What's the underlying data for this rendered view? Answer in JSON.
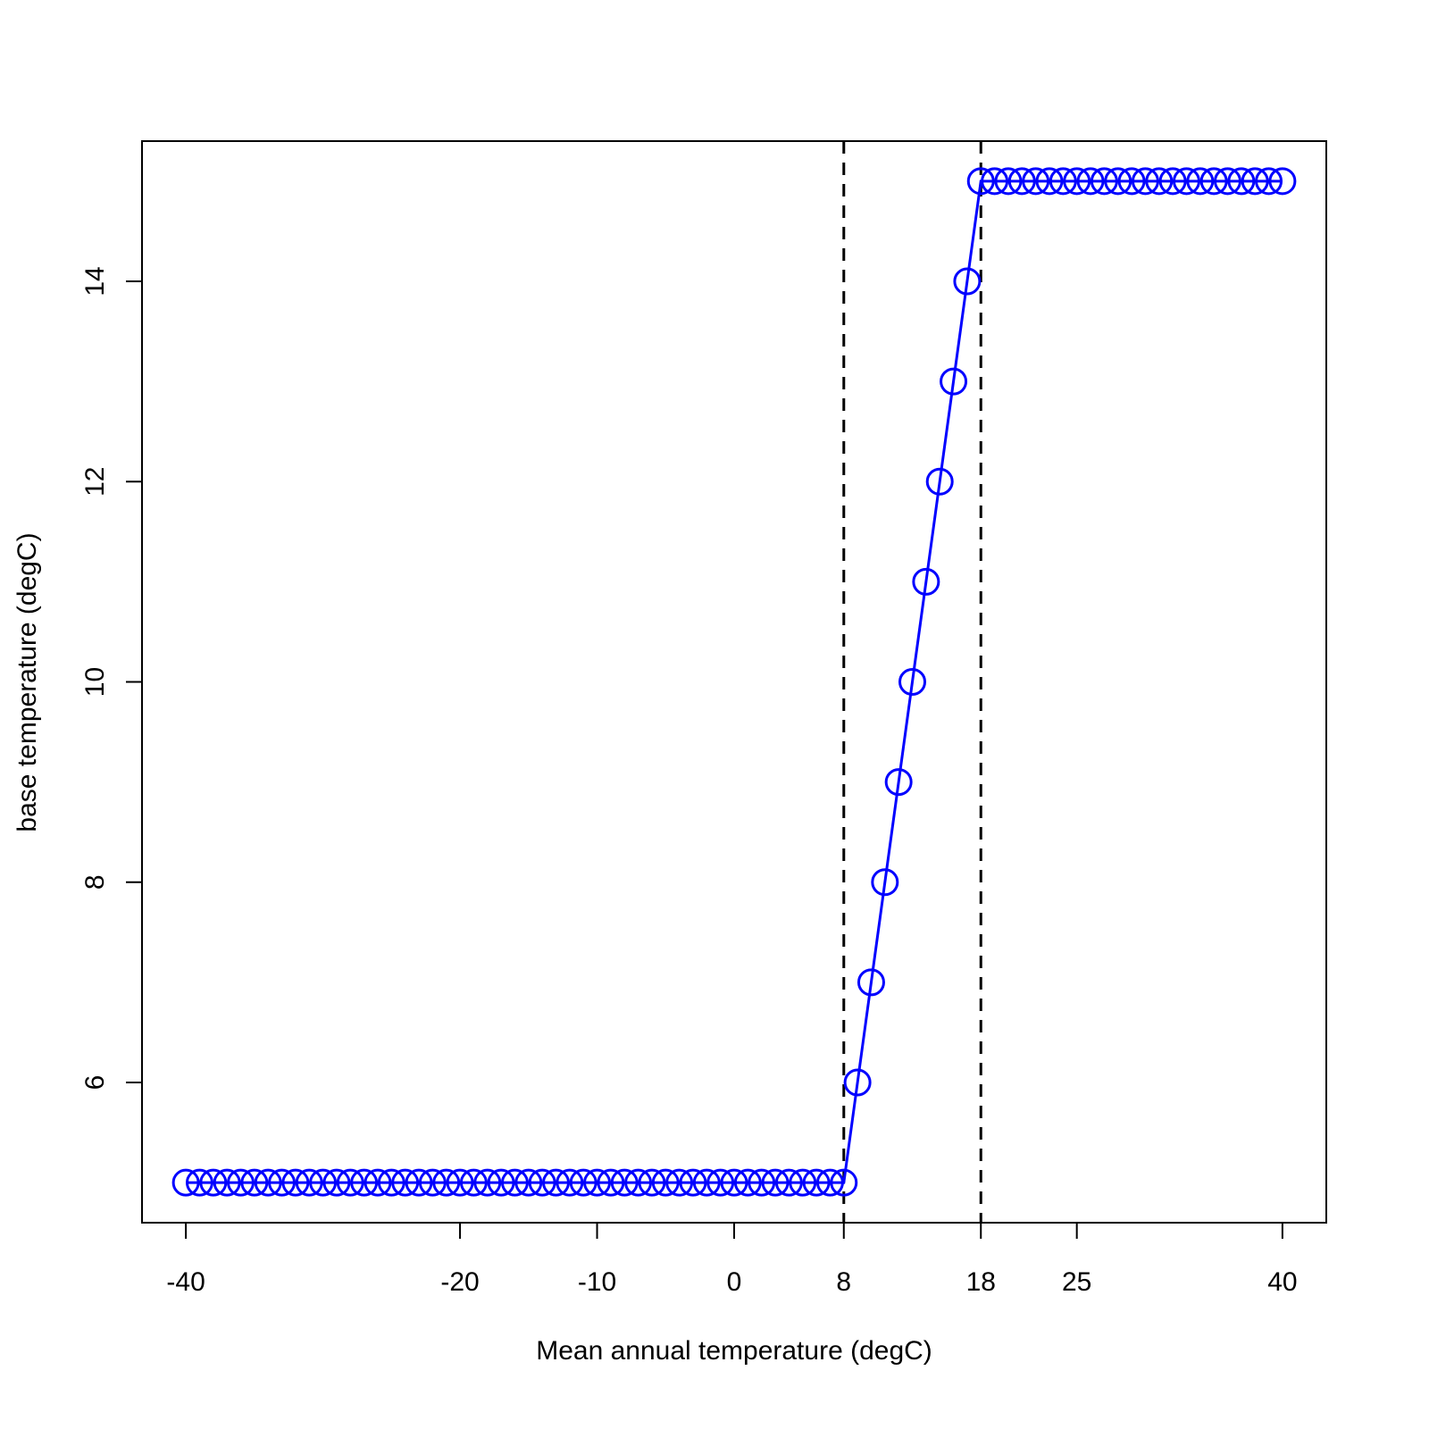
{
  "chart_data": {
    "type": "line",
    "xlabel": "Mean annual temperature (degC)",
    "ylabel": "base temperature (degC)",
    "x": [
      -40,
      -39,
      -38,
      -37,
      -36,
      -35,
      -34,
      -33,
      -32,
      -31,
      -30,
      -29,
      -28,
      -27,
      -26,
      -25,
      -24,
      -23,
      -22,
      -21,
      -20,
      -19,
      -18,
      -17,
      -16,
      -15,
      -14,
      -13,
      -12,
      -11,
      -10,
      -9,
      -8,
      -7,
      -6,
      -5,
      -4,
      -3,
      -2,
      -1,
      0,
      1,
      2,
      3,
      4,
      5,
      6,
      7,
      8,
      9,
      10,
      11,
      12,
      13,
      14,
      15,
      16,
      17,
      18,
      19,
      20,
      21,
      22,
      23,
      24,
      25,
      26,
      27,
      28,
      29,
      30,
      31,
      32,
      33,
      34,
      35,
      36,
      37,
      38,
      39,
      40
    ],
    "values": [
      5,
      5,
      5,
      5,
      5,
      5,
      5,
      5,
      5,
      5,
      5,
      5,
      5,
      5,
      5,
      5,
      5,
      5,
      5,
      5,
      5,
      5,
      5,
      5,
      5,
      5,
      5,
      5,
      5,
      5,
      5,
      5,
      5,
      5,
      5,
      5,
      5,
      5,
      5,
      5,
      5,
      5,
      5,
      5,
      5,
      5,
      5,
      5,
      5,
      6,
      7,
      8,
      9,
      10,
      11,
      12,
      13,
      14,
      15,
      15,
      15,
      15,
      15,
      15,
      15,
      15,
      15,
      15,
      15,
      15,
      15,
      15,
      15,
      15,
      15,
      15,
      15,
      15,
      15,
      15,
      15
    ],
    "color": "#0000ff",
    "markers": "open-circle",
    "vlines": [
      8,
      18
    ],
    "xlim": [
      -43.2,
      43.2
    ],
    "ylim": [
      4.6,
      15.4
    ],
    "xticks": [
      -40,
      -20,
      -10,
      0,
      8,
      18,
      25,
      40
    ],
    "yticks": [
      6,
      8,
      10,
      12,
      14
    ]
  }
}
